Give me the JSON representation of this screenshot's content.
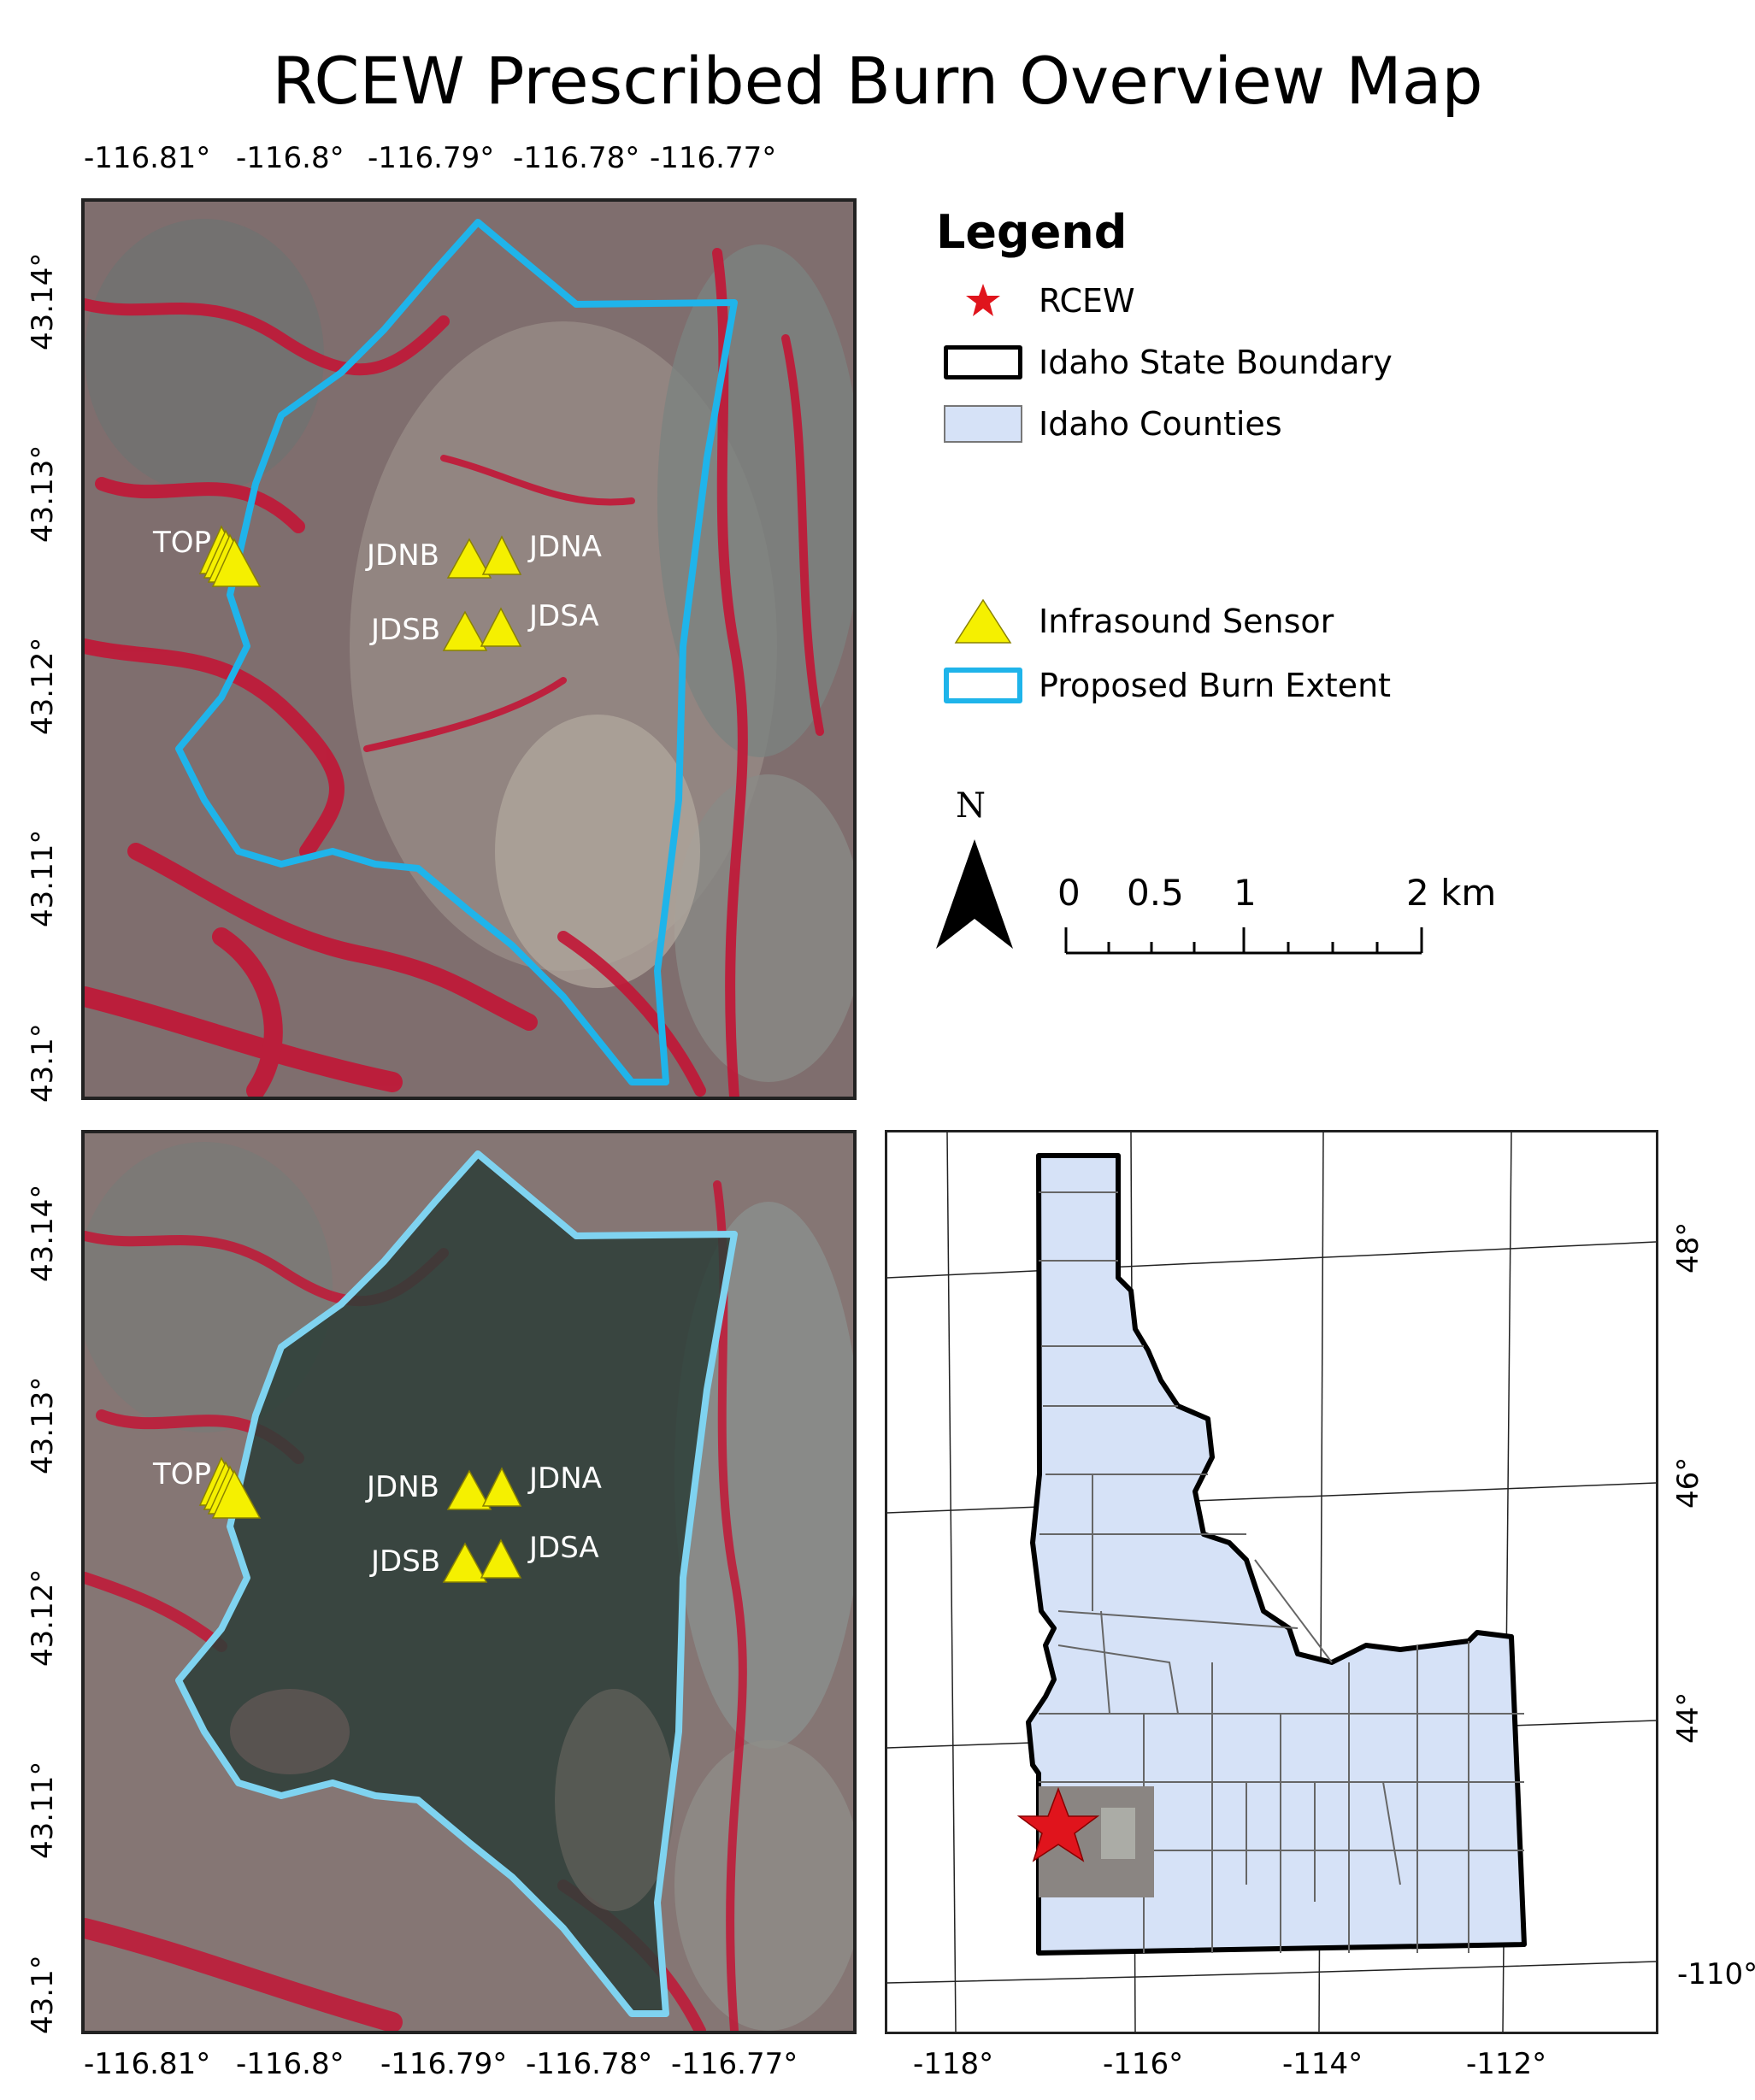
{
  "title": "RCEW Prescribed Burn Overview Map",
  "top_map": {
    "x_ticks": [
      "-116.81°",
      "-116.8°",
      "-116.79°",
      "-116.78°",
      "-116.77°"
    ],
    "y_ticks": [
      "43.14°",
      "43.13°",
      "43.12°",
      "43.11°",
      "43.1°"
    ],
    "sensors": [
      {
        "label": "TOP"
      },
      {
        "label": "JDNB"
      },
      {
        "label": "JDNA"
      },
      {
        "label": "JDSB"
      },
      {
        "label": "JDSA"
      }
    ]
  },
  "bottom_map": {
    "x_ticks": [
      "-116.81°",
      "-116.8°",
      "-116.79°",
      "-116.78°",
      "-116.77°"
    ],
    "y_ticks": [
      "43.14°",
      "43.13°",
      "43.12°",
      "43.11°",
      "43.1°"
    ],
    "sensors": [
      {
        "label": "TOP"
      },
      {
        "label": "JDNB"
      },
      {
        "label": "JDNA"
      },
      {
        "label": "JDSB"
      },
      {
        "label": "JDSA"
      }
    ]
  },
  "legend": {
    "title": "Legend",
    "items": [
      {
        "label": "RCEW",
        "icon": "red-star-icon",
        "color": "#e0141c"
      },
      {
        "label": "Idaho State Boundary",
        "icon": "black-outline-box",
        "color": "#000000"
      },
      {
        "label": "Idaho Counties",
        "icon": "blue-fill-box",
        "color": "#d6e2f7"
      },
      {
        "label": "Infrasound Sensor",
        "icon": "yellow-triangle-icon",
        "color": "#f5f000"
      },
      {
        "label": "Proposed Burn Extent",
        "icon": "cyan-outline-box",
        "color": "#1fb4ea"
      }
    ]
  },
  "north_arrow": {
    "label": "N"
  },
  "scale_bar": {
    "labels": [
      "0",
      "0.5",
      "1",
      "2 km"
    ]
  },
  "inset": {
    "x_ticks": [
      "-118°",
      "-116°",
      "-114°",
      "-112°"
    ],
    "y_ticks": [
      "48°",
      "46°",
      "44°",
      "-110°"
    ]
  }
}
